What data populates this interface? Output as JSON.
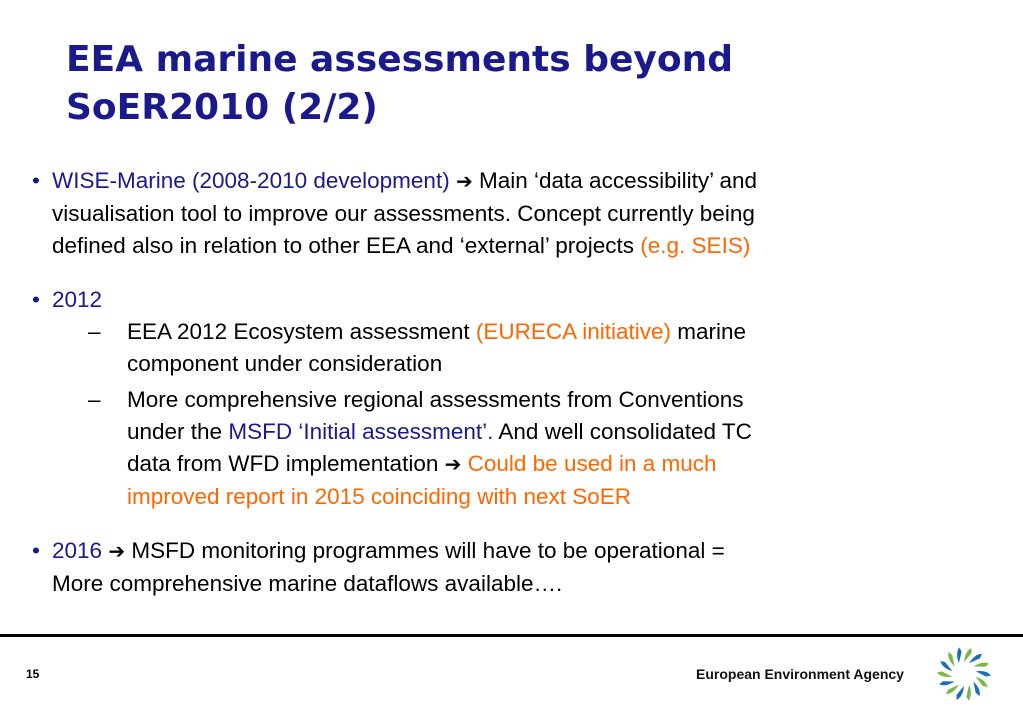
{
  "title": {
    "line1": "EEA marine assessments beyond",
    "line2": "SoER2010 (2/2)"
  },
  "bullets": {
    "b1": {
      "mark": "•",
      "lead": "WISE-Marine (2008-2010 development)",
      "arrow": "➔",
      "text1": " Main ‘data accessibility’ and",
      "text2": "visualisation tool to improve our assessments. Concept currently being",
      "text3": "defined also in relation to other EEA and ‘external’ projects ",
      "paren": "(e.g. SEIS)"
    },
    "b2": {
      "mark": "•",
      "lead": "2012",
      "sub1": {
        "dash": "–",
        "text1": "EEA 2012 Ecosystem assessment ",
        "paren": "(EURECA initiative)",
        "text2": " marine",
        "text3": "component under consideration"
      },
      "sub2": {
        "dash": "–",
        "text1": "More comprehensive regional assessments from Conventions",
        "text2a": "under the ",
        "msfd": "MSFD ‘Initial assessment’.",
        "text2b": " And well consolidated TC",
        "text3": "data from WFD implementation ",
        "arrow": "➔",
        "orange1": " Could be used in a much",
        "orange2": "improved report in 2015 coinciding with next SoER"
      }
    },
    "b3": {
      "mark": "•",
      "lead": "2016",
      "arrow": "➔",
      "text1": " MSFD monitoring programmes will have to be operational =",
      "text2": "More comprehensive marine dataflows available…."
    }
  },
  "footer": {
    "page_number": "15",
    "agency": "European Environment Agency",
    "logo_icon": "eea-logo-icon"
  },
  "colors": {
    "title": "#1a1a8c",
    "highlight_blue": "#1a1a8c",
    "highlight_orange": "#ff6600",
    "logo_green": "#7ab648",
    "logo_blue": "#1b6fb5"
  }
}
